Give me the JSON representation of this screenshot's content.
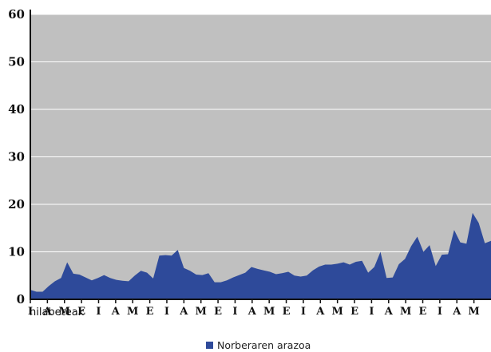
{
  "chart_data": {
    "type": "area",
    "xlabel": "hilabeteak",
    "ylabel": "",
    "title": "",
    "ylim": [
      0,
      60
    ],
    "yticks": [
      0,
      10,
      20,
      30,
      40,
      50,
      60
    ],
    "grid": true,
    "legend_position": "bottom",
    "colors": {
      "plot_bg": "#c0c0c0",
      "area": "#2e4a9a",
      "gridline": "#ffffff"
    },
    "x_tick_labels": [
      "I",
      "A",
      "M",
      "E",
      "I",
      "A",
      "M",
      "E",
      "I",
      "A",
      "M",
      "E",
      "I",
      "A",
      "M",
      "E",
      "I",
      "A",
      "M",
      "E",
      "I",
      "A",
      "M",
      "E",
      "I",
      "A",
      "M"
    ],
    "series": [
      {
        "name": "Norberaren arazoa",
        "values": [
          2.0,
          1.6,
          1.6,
          2.8,
          3.8,
          4.5,
          7.8,
          5.4,
          5.2,
          4.6,
          4.0,
          4.5,
          5.1,
          4.5,
          4.1,
          3.9,
          3.8,
          5.0,
          6.0,
          5.6,
          4.4,
          9.2,
          9.3,
          9.2,
          10.4,
          6.6,
          6.0,
          5.2,
          5.1,
          5.5,
          3.6,
          3.6,
          4.0,
          4.6,
          5.1,
          5.6,
          6.8,
          6.4,
          6.1,
          5.8,
          5.3,
          5.5,
          5.8,
          5.0,
          4.8,
          5.0,
          6.1,
          6.9,
          7.3,
          7.3,
          7.5,
          7.8,
          7.3,
          7.9,
          8.1,
          5.6,
          6.8,
          10.0,
          4.5,
          4.6,
          7.4,
          8.5,
          11.2,
          13.2,
          10.0,
          11.4,
          7.0,
          9.4,
          9.5,
          14.6,
          12.0,
          11.7,
          18.2,
          16.1,
          11.8,
          12.3
        ]
      }
    ]
  }
}
